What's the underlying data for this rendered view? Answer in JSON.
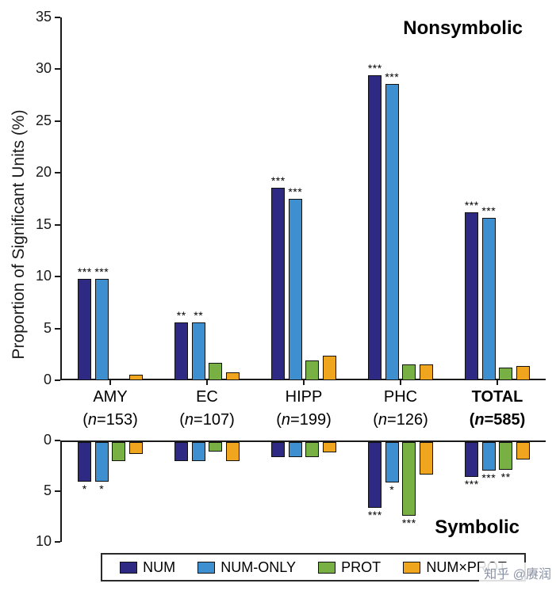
{
  "watermark": "知乎 @赓润",
  "chart_data": {
    "type": "bar",
    "ylabel": "Proportion of Significant Units (%)",
    "colors": {
      "NUM": "#2e2a84",
      "NUM-ONLY": "#3e8fd0",
      "PROT": "#79b043",
      "NUM×PROT": "#f0a51f",
      "axis": "#1a1a1a"
    },
    "categories": [
      {
        "name": "AMY",
        "n": "153",
        "bold": false
      },
      {
        "name": "EC",
        "n": "107",
        "bold": false
      },
      {
        "name": "HIPP",
        "n": "199",
        "bold": false
      },
      {
        "name": "PHC",
        "n": "126",
        "bold": false
      },
      {
        "name": "TOTAL",
        "n": "585",
        "bold": true
      }
    ],
    "legend": [
      "NUM",
      "NUM-ONLY",
      "PROT",
      "NUM×PROT"
    ],
    "panels": [
      {
        "title": "Nonsymbolic",
        "direction": "up",
        "ylim": [
          0,
          35
        ],
        "yticks": [
          0,
          5,
          10,
          15,
          20,
          25,
          30,
          35
        ],
        "series": [
          {
            "name": "NUM",
            "values": [
              9.8,
              5.6,
              18.6,
              29.4,
              16.2
            ],
            "sig": [
              "***",
              "**",
              "***",
              "***",
              "***"
            ]
          },
          {
            "name": "NUM-ONLY",
            "values": [
              9.8,
              5.6,
              17.5,
              28.6,
              15.7
            ],
            "sig": [
              "***",
              "**",
              "***",
              "***",
              "***"
            ]
          },
          {
            "name": "PROT",
            "values": [
              0,
              1.7,
              1.9,
              1.5,
              1.2
            ],
            "sig": [
              "",
              "",
              "",
              "",
              ""
            ]
          },
          {
            "name": "NUM×PROT",
            "values": [
              0.5,
              0.8,
              2.4,
              1.5,
              1.4
            ],
            "sig": [
              "",
              "",
              "",
              "",
              ""
            ]
          }
        ]
      },
      {
        "title": "Symbolic",
        "direction": "down",
        "ylim": [
          0,
          10
        ],
        "yticks": [
          0,
          5,
          10
        ],
        "series": [
          {
            "name": "NUM",
            "values": [
              3.9,
              1.9,
              1.5,
              6.5,
              3.4
            ],
            "sig": [
              "*",
              "",
              "",
              "***",
              "***"
            ]
          },
          {
            "name": "NUM-ONLY",
            "values": [
              3.9,
              1.9,
              1.5,
              4.0,
              2.8
            ],
            "sig": [
              "*",
              "",
              "",
              "*",
              "***"
            ]
          },
          {
            "name": "PROT",
            "values": [
              1.9,
              0.9,
              1.5,
              7.3,
              2.7
            ],
            "sig": [
              "",
              "",
              "",
              "***",
              "**"
            ]
          },
          {
            "name": "NUM×PROT",
            "values": [
              1.2,
              1.9,
              1.0,
              3.2,
              1.7
            ],
            "sig": [
              "",
              "",
              "",
              "",
              ""
            ]
          }
        ]
      }
    ]
  }
}
